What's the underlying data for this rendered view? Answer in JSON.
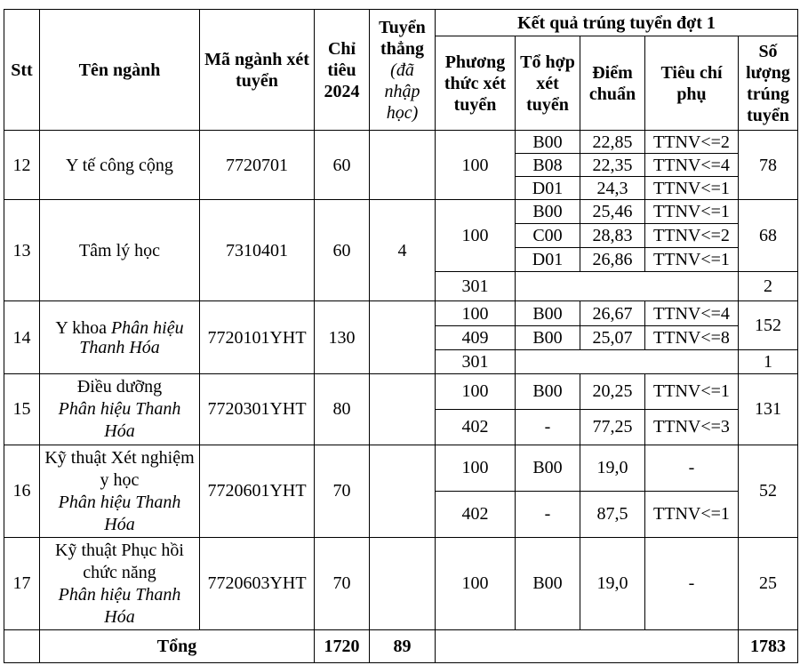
{
  "header": {
    "stt": "Stt",
    "ten_nganh": "Tên ngành",
    "ma_nganh": "Mã ngành xét tuyển",
    "chi_tieu": "Chỉ tiêu 2024",
    "tuyen_thang": "Tuyển thẳng",
    "tuyen_thang_note": "(đã nhập học)",
    "ket_qua": "Kết quả trúng tuyển đợt 1",
    "phuong_thuc": "Phương thức xét tuyển",
    "to_hop": "Tổ hợp xét tuyển",
    "diem_chuan": "Điểm chuẩn",
    "tieu_chi": "Tiêu chí phụ",
    "so_luong": "Số lượng trúng tuyển"
  },
  "rows": [
    {
      "stt": "12",
      "ten": "Y tế công cộng",
      "ma": "7720701",
      "chi_tieu": "60",
      "tuyen_thang": "",
      "sub": [
        {
          "pt": "100",
          "th": "B00",
          "diem": "22,85",
          "tc": "TTNV<=2"
        },
        {
          "th": "B08",
          "diem": "22,35",
          "tc": "TTNV<=4"
        },
        {
          "th": "D01",
          "diem": "24,3",
          "tc": "TTNV<=1"
        }
      ],
      "sl": [
        "78"
      ]
    },
    {
      "stt": "13",
      "ten": "Tâm lý học",
      "ma": "7310401",
      "chi_tieu": "60",
      "tuyen_thang": "4",
      "sub": [
        {
          "pt": "100",
          "th": "B00",
          "diem": "25,46",
          "tc": "TTNV<=1"
        },
        {
          "th": "C00",
          "diem": "28,83",
          "tc": "TTNV<=2"
        },
        {
          "th": "D01",
          "diem": "26,86",
          "tc": "TTNV<=1"
        },
        {
          "pt": "301"
        }
      ],
      "sl": [
        "68",
        "2"
      ]
    },
    {
      "stt": "14",
      "ten": "Y khoa",
      "ten_note": "Phân hiệu Thanh Hóa",
      "ma": "7720101YHT",
      "chi_tieu": "130",
      "tuyen_thang": "",
      "sub": [
        {
          "pt": "100",
          "th": "B00",
          "diem": "26,67",
          "tc": "TTNV<=4"
        },
        {
          "pt": "409",
          "th": "B00",
          "diem": "25,07",
          "tc": "TTNV<=8"
        },
        {
          "pt": "301"
        }
      ],
      "sl": [
        "152",
        "1"
      ]
    },
    {
      "stt": "15",
      "ten": "Điều dưỡng",
      "ten_note": "Phân hiệu Thanh Hóa",
      "ma": "7720301YHT",
      "chi_tieu": "80",
      "tuyen_thang": "",
      "sub": [
        {
          "pt": "100",
          "th": "B00",
          "diem": "20,25",
          "tc": "TTNV<=1"
        },
        {
          "pt": "402",
          "th": "-",
          "diem": "77,25",
          "tc": "TTNV<=3"
        }
      ],
      "sl": [
        "131"
      ]
    },
    {
      "stt": "16",
      "ten": "Kỹ thuật Xét nghiệm y học",
      "ten_note": "Phân hiệu Thanh Hóa",
      "ma": "7720601YHT",
      "chi_tieu": "70",
      "tuyen_thang": "",
      "sub": [
        {
          "pt": "100",
          "th": "B00",
          "diem": "19,0",
          "tc": "-"
        },
        {
          "pt": "402",
          "th": "-",
          "diem": "87,5",
          "tc": "TTNV<=1"
        }
      ],
      "sl": [
        "52"
      ]
    },
    {
      "stt": "17",
      "ten": "Kỹ thuật Phục hồi chức năng",
      "ten_note": "Phân hiệu Thanh Hóa",
      "ma": "7720603YHT",
      "chi_tieu": "70",
      "tuyen_thang": "",
      "sub": [
        {
          "pt": "100",
          "th": "B00",
          "diem": "19,0",
          "tc": "-"
        }
      ],
      "sl": [
        "25"
      ]
    }
  ],
  "total": {
    "label": "Tổng",
    "chi_tieu": "1720",
    "tuyen_thang": "89",
    "so_luong": "1783"
  }
}
